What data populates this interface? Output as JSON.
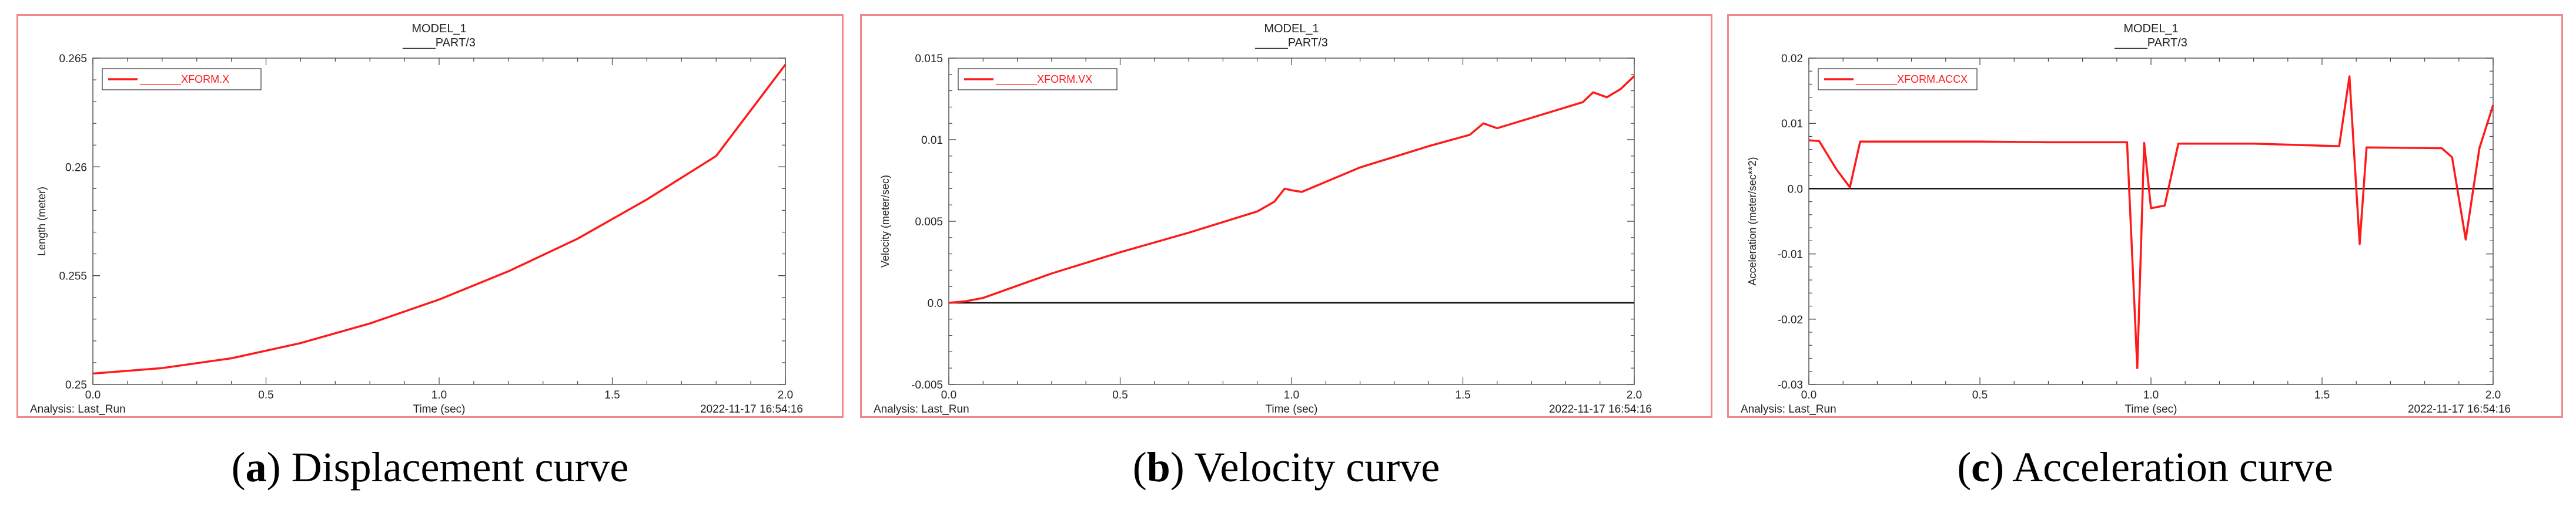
{
  "chart_data": [
    {
      "type": "line",
      "title": "MODEL_1",
      "subtitle_prefix": "_____",
      "subtitle": "PART/3",
      "legend_label": "_______XFORM.X",
      "legend_position": "top-left",
      "xlabel": "Time (sec)",
      "ylabel": "Length (meter)",
      "footer_left": "Analysis:  Last_Run",
      "footer_right": "2022-11-17 16:54:16",
      "xlim": [
        0.0,
        2.0
      ],
      "ylim": [
        0.25,
        0.265
      ],
      "x_ticks": [
        "0.0",
        "0.5",
        "1.0",
        "1.5",
        "2.0"
      ],
      "y_ticks": [
        "0.25",
        "0.255",
        "0.26",
        "0.265"
      ],
      "y_tick_values": [
        0.25,
        0.255,
        0.26,
        0.265
      ],
      "zero_line": false,
      "series": [
        {
          "name": "XFORM.X",
          "color": "#ff1a1a",
          "x": [
            0.0,
            0.2,
            0.4,
            0.6,
            0.8,
            1.0,
            1.2,
            1.4,
            1.6,
            1.8,
            2.0
          ],
          "values": [
            0.2505,
            0.25075,
            0.2512,
            0.2519,
            0.2528,
            0.2539,
            0.2552,
            0.2567,
            0.2585,
            0.2605,
            0.2647
          ]
        }
      ],
      "caption_letter": "a",
      "caption_text": " Displacement curve"
    },
    {
      "type": "line",
      "title": "MODEL_1",
      "subtitle_prefix": "_____",
      "subtitle": "PART/3",
      "legend_label": "_______XFORM.VX",
      "legend_position": "top-left",
      "xlabel": "Time (sec)",
      "ylabel": "Velocity (meter/sec)",
      "footer_left": "Analysis:  Last_Run",
      "footer_right": "2022-11-17 16:54:16",
      "xlim": [
        0.0,
        2.0
      ],
      "ylim": [
        -0.005,
        0.015
      ],
      "x_ticks": [
        "0.0",
        "0.5",
        "1.0",
        "1.5",
        "2.0"
      ],
      "y_ticks": [
        "-0.005",
        "0.0",
        "0.005",
        "0.01",
        "0.015"
      ],
      "y_tick_values": [
        -0.005,
        0.0,
        0.005,
        0.01,
        0.015
      ],
      "zero_line": true,
      "series": [
        {
          "name": "XFORM.VX",
          "color": "#ff1a1a",
          "x": [
            0.0,
            0.05,
            0.1,
            0.3,
            0.5,
            0.7,
            0.9,
            0.95,
            0.98,
            1.0,
            1.03,
            1.2,
            1.4,
            1.52,
            1.56,
            1.6,
            1.85,
            1.88,
            1.92,
            1.96,
            2.0
          ],
          "values": [
            0.0,
            0.0001,
            0.0003,
            0.0018,
            0.0031,
            0.0043,
            0.0056,
            0.0062,
            0.007,
            0.0069,
            0.0068,
            0.0083,
            0.0096,
            0.0103,
            0.011,
            0.0107,
            0.0123,
            0.0129,
            0.0126,
            0.0131,
            0.0139
          ]
        }
      ],
      "caption_letter": "b",
      "caption_text": " Velocity curve"
    },
    {
      "type": "line",
      "title": "MODEL_1",
      "subtitle_prefix": "_____",
      "subtitle": "PART/3",
      "legend_label": "_______XFORM.ACCX",
      "legend_position": "top-left",
      "xlabel": "Time (sec)",
      "ylabel": "Acceleration (meter/sec**2)",
      "footer_left": "Analysis:  Last_Run",
      "footer_right": "2022-11-17 16:54:16",
      "xlim": [
        0.0,
        2.0
      ],
      "ylim": [
        -0.03,
        0.02
      ],
      "x_ticks": [
        "0.0",
        "0.5",
        "1.0",
        "1.5",
        "2.0"
      ],
      "y_ticks": [
        "-0.03",
        "-0.02",
        "-0.01",
        "0.0",
        "0.01",
        "0.02"
      ],
      "y_tick_values": [
        -0.03,
        -0.02,
        -0.01,
        0.0,
        0.01,
        0.02
      ],
      "zero_line": true,
      "series": [
        {
          "name": "XFORM.ACCX",
          "color": "#ff1a1a",
          "x": [
            0.0,
            0.03,
            0.08,
            0.12,
            0.15,
            0.3,
            0.5,
            0.7,
            0.93,
            0.96,
            0.98,
            1.0,
            1.04,
            1.08,
            1.3,
            1.55,
            1.58,
            1.61,
            1.63,
            1.85,
            1.88,
            1.92,
            1.96,
            2.0
          ],
          "values": [
            0.0074,
            0.0073,
            0.003,
            0.0002,
            0.0072,
            0.0072,
            0.0072,
            0.0071,
            0.0071,
            -0.0275,
            0.007,
            -0.003,
            -0.0026,
            0.0069,
            0.0069,
            0.0065,
            0.0172,
            -0.0085,
            0.0063,
            0.0062,
            0.0048,
            -0.0078,
            0.0062,
            0.0128
          ]
        }
      ],
      "caption_letter": "c",
      "caption_text": " Acceleration curve"
    }
  ]
}
